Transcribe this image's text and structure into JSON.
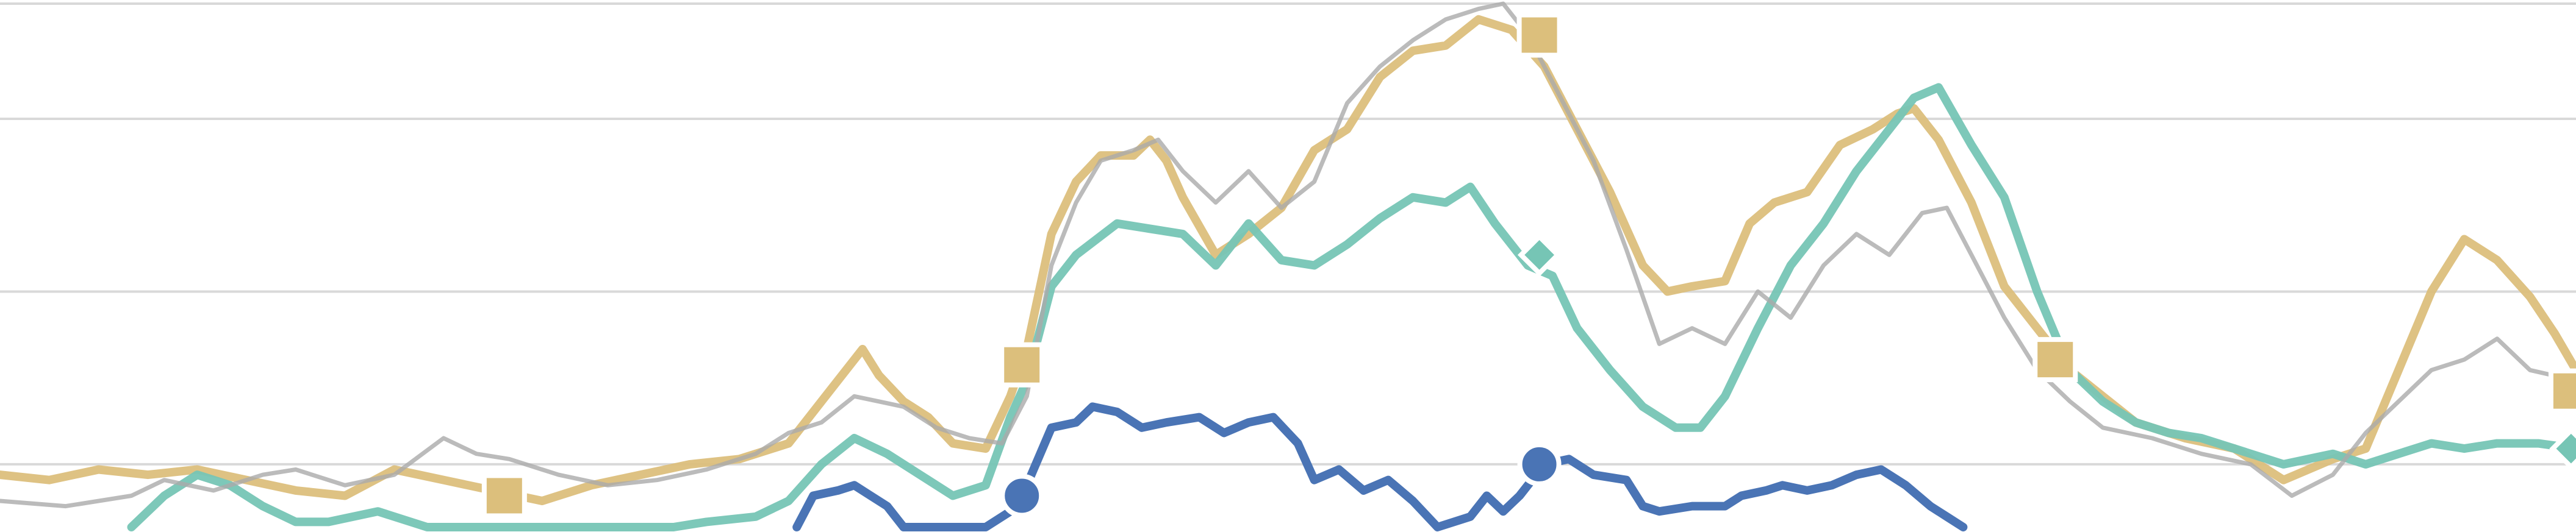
{
  "chart_data": {
    "type": "line",
    "title": "",
    "xlabel": "",
    "ylabel": "",
    "xlim": [
      0,
      1568
    ],
    "ylim": [
      0,
      100
    ],
    "grid": true,
    "legend": "none",
    "gridlines_y": [
      12,
      45,
      78,
      100
    ],
    "series": [
      {
        "color": "#dcbf7c",
        "marker": "square",
        "markers": [
          [
            307,
            6
          ],
          [
            622,
            31
          ],
          [
            937,
            94
          ],
          [
            1251,
            32
          ],
          [
            1565,
            26
          ]
        ],
        "points": [
          [
            0,
            10
          ],
          [
            30,
            9
          ],
          [
            60,
            11
          ],
          [
            90,
            10
          ],
          [
            120,
            11
          ],
          [
            150,
            9
          ],
          [
            180,
            7
          ],
          [
            210,
            6
          ],
          [
            240,
            11
          ],
          [
            270,
            9
          ],
          [
            300,
            7
          ],
          [
            330,
            5
          ],
          [
            360,
            8
          ],
          [
            390,
            10
          ],
          [
            420,
            12
          ],
          [
            450,
            13
          ],
          [
            480,
            16
          ],
          [
            500,
            24
          ],
          [
            515,
            30
          ],
          [
            525,
            34
          ],
          [
            535,
            29
          ],
          [
            550,
            24
          ],
          [
            565,
            21
          ],
          [
            580,
            16
          ],
          [
            600,
            15
          ],
          [
            615,
            25
          ],
          [
            625,
            34
          ],
          [
            640,
            56
          ],
          [
            655,
            66
          ],
          [
            670,
            71
          ],
          [
            690,
            71
          ],
          [
            700,
            74
          ],
          [
            710,
            70
          ],
          [
            720,
            63
          ],
          [
            740,
            52
          ],
          [
            760,
            56
          ],
          [
            780,
            61
          ],
          [
            800,
            72
          ],
          [
            820,
            76
          ],
          [
            840,
            86
          ],
          [
            860,
            91
          ],
          [
            880,
            92
          ],
          [
            900,
            97
          ],
          [
            920,
            95
          ],
          [
            940,
            88
          ],
          [
            960,
            76
          ],
          [
            980,
            64
          ],
          [
            1000,
            50
          ],
          [
            1015,
            45
          ],
          [
            1030,
            46
          ],
          [
            1050,
            47
          ],
          [
            1065,
            58
          ],
          [
            1080,
            62
          ],
          [
            1100,
            64
          ],
          [
            1120,
            73
          ],
          [
            1140,
            76
          ],
          [
            1155,
            79
          ],
          [
            1165,
            80
          ],
          [
            1180,
            74
          ],
          [
            1200,
            62
          ],
          [
            1220,
            46
          ],
          [
            1240,
            38
          ],
          [
            1260,
            30
          ],
          [
            1280,
            25
          ],
          [
            1300,
            20
          ],
          [
            1330,
            17
          ],
          [
            1360,
            15
          ],
          [
            1390,
            9
          ],
          [
            1420,
            13
          ],
          [
            1440,
            15
          ],
          [
            1460,
            30
          ],
          [
            1480,
            45
          ],
          [
            1500,
            55
          ],
          [
            1520,
            51
          ],
          [
            1540,
            44
          ],
          [
            1555,
            37
          ],
          [
            1568,
            30
          ]
        ]
      },
      {
        "color": "#76c5b5",
        "marker": "diamond",
        "markers": [
          [
            937,
            52
          ],
          [
            1565,
            15
          ]
        ],
        "points": [
          [
            80,
            0
          ],
          [
            100,
            6
          ],
          [
            120,
            10
          ],
          [
            140,
            8
          ],
          [
            160,
            4
          ],
          [
            180,
            1
          ],
          [
            200,
            1
          ],
          [
            230,
            3
          ],
          [
            260,
            0
          ],
          [
            300,
            0
          ],
          [
            330,
            0
          ],
          [
            360,
            0
          ],
          [
            390,
            0
          ],
          [
            410,
            0
          ],
          [
            430,
            1
          ],
          [
            460,
            2
          ],
          [
            480,
            5
          ],
          [
            500,
            12
          ],
          [
            520,
            17
          ],
          [
            540,
            14
          ],
          [
            560,
            10
          ],
          [
            580,
            6
          ],
          [
            600,
            8
          ],
          [
            615,
            21
          ],
          [
            625,
            28
          ],
          [
            640,
            46
          ],
          [
            655,
            52
          ],
          [
            680,
            58
          ],
          [
            700,
            57
          ],
          [
            720,
            56
          ],
          [
            740,
            50
          ],
          [
            760,
            58
          ],
          [
            780,
            51
          ],
          [
            800,
            50
          ],
          [
            820,
            54
          ],
          [
            840,
            59
          ],
          [
            860,
            63
          ],
          [
            880,
            62
          ],
          [
            895,
            65
          ],
          [
            910,
            58
          ],
          [
            930,
            50
          ],
          [
            945,
            48
          ],
          [
            960,
            38
          ],
          [
            980,
            30
          ],
          [
            1000,
            23
          ],
          [
            1020,
            19
          ],
          [
            1035,
            19
          ],
          [
            1050,
            25
          ],
          [
            1070,
            38
          ],
          [
            1090,
            50
          ],
          [
            1110,
            58
          ],
          [
            1130,
            68
          ],
          [
            1150,
            76
          ],
          [
            1165,
            82
          ],
          [
            1180,
            84
          ],
          [
            1200,
            73
          ],
          [
            1220,
            63
          ],
          [
            1240,
            45
          ],
          [
            1260,
            30
          ],
          [
            1280,
            24
          ],
          [
            1300,
            20
          ],
          [
            1320,
            18
          ],
          [
            1340,
            17
          ],
          [
            1360,
            15
          ],
          [
            1390,
            12
          ],
          [
            1420,
            14
          ],
          [
            1440,
            12
          ],
          [
            1460,
            14
          ],
          [
            1480,
            16
          ],
          [
            1500,
            15
          ],
          [
            1520,
            16
          ],
          [
            1545,
            16
          ],
          [
            1568,
            15
          ]
        ]
      },
      {
        "color": "#aaaaaa",
        "marker": "none",
        "markers": [],
        "points": [
          [
            0,
            5
          ],
          [
            40,
            4
          ],
          [
            80,
            6
          ],
          [
            100,
            9
          ],
          [
            130,
            7
          ],
          [
            160,
            10
          ],
          [
            180,
            11
          ],
          [
            210,
            8
          ],
          [
            240,
            10
          ],
          [
            270,
            17
          ],
          [
            290,
            14
          ],
          [
            310,
            13
          ],
          [
            340,
            10
          ],
          [
            370,
            8
          ],
          [
            400,
            9
          ],
          [
            430,
            11
          ],
          [
            460,
            14
          ],
          [
            480,
            18
          ],
          [
            500,
            20
          ],
          [
            520,
            25
          ],
          [
            535,
            24
          ],
          [
            550,
            23
          ],
          [
            570,
            19
          ],
          [
            590,
            17
          ],
          [
            610,
            16
          ],
          [
            625,
            25
          ],
          [
            640,
            50
          ],
          [
            655,
            62
          ],
          [
            670,
            70
          ],
          [
            690,
            72
          ],
          [
            705,
            74
          ],
          [
            720,
            68
          ],
          [
            740,
            62
          ],
          [
            760,
            68
          ],
          [
            780,
            61
          ],
          [
            800,
            66
          ],
          [
            820,
            81
          ],
          [
            840,
            88
          ],
          [
            860,
            93
          ],
          [
            880,
            97
          ],
          [
            900,
            99
          ],
          [
            915,
            100
          ],
          [
            930,
            94
          ],
          [
            950,
            82
          ],
          [
            970,
            70
          ],
          [
            990,
            53
          ],
          [
            1010,
            35
          ],
          [
            1030,
            38
          ],
          [
            1050,
            35
          ],
          [
            1070,
            45
          ],
          [
            1090,
            40
          ],
          [
            1110,
            50
          ],
          [
            1130,
            56
          ],
          [
            1150,
            52
          ],
          [
            1170,
            60
          ],
          [
            1185,
            61
          ],
          [
            1200,
            52
          ],
          [
            1220,
            40
          ],
          [
            1240,
            30
          ],
          [
            1260,
            24
          ],
          [
            1280,
            19
          ],
          [
            1310,
            17
          ],
          [
            1340,
            14
          ],
          [
            1370,
            12
          ],
          [
            1395,
            6
          ],
          [
            1420,
            10
          ],
          [
            1440,
            18
          ],
          [
            1460,
            24
          ],
          [
            1480,
            30
          ],
          [
            1500,
            32
          ],
          [
            1520,
            36
          ],
          [
            1540,
            30
          ],
          [
            1568,
            28
          ]
        ]
      },
      {
        "color": "#4a74b5",
        "marker": "circle",
        "markers": [
          [
            622,
            6
          ],
          [
            937,
            12
          ]
        ],
        "points": [
          [
            485,
            0
          ],
          [
            495,
            6
          ],
          [
            510,
            7
          ],
          [
            520,
            8
          ],
          [
            530,
            6
          ],
          [
            540,
            4
          ],
          [
            550,
            0
          ],
          [
            600,
            0
          ],
          [
            615,
            3
          ],
          [
            625,
            8
          ],
          [
            640,
            19
          ],
          [
            655,
            20
          ],
          [
            665,
            23
          ],
          [
            680,
            22
          ],
          [
            695,
            19
          ],
          [
            710,
            20
          ],
          [
            730,
            21
          ],
          [
            745,
            18
          ],
          [
            760,
            20
          ],
          [
            775,
            21
          ],
          [
            790,
            16
          ],
          [
            800,
            9
          ],
          [
            815,
            11
          ],
          [
            830,
            7
          ],
          [
            845,
            9
          ],
          [
            860,
            5
          ],
          [
            875,
            0
          ],
          [
            895,
            2
          ],
          [
            905,
            6
          ],
          [
            915,
            3
          ],
          [
            925,
            6
          ],
          [
            940,
            12
          ],
          [
            955,
            13
          ],
          [
            970,
            10
          ],
          [
            990,
            9
          ],
          [
            1000,
            4
          ],
          [
            1010,
            3
          ],
          [
            1030,
            4
          ],
          [
            1050,
            4
          ],
          [
            1060,
            6
          ],
          [
            1075,
            7
          ],
          [
            1085,
            8
          ],
          [
            1100,
            7
          ],
          [
            1115,
            8
          ],
          [
            1130,
            10
          ],
          [
            1145,
            11
          ],
          [
            1160,
            8
          ],
          [
            1175,
            4
          ],
          [
            1185,
            2
          ],
          [
            1195,
            0
          ]
        ]
      }
    ]
  }
}
